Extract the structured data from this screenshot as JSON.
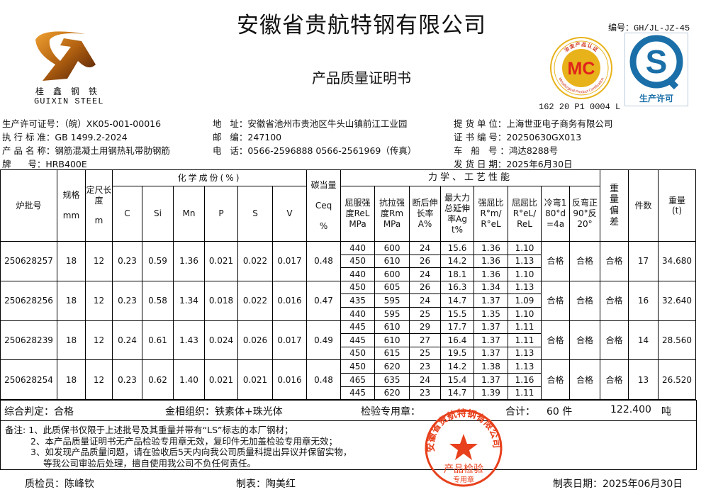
{
  "header": {
    "title": "安徽省贵航特钢有限公司",
    "subtitle": "产品质量证明书",
    "form_no": "编号：GH/JL-JZ-45",
    "logo_cn": "桂鑫钢铁",
    "logo_en": "GUIXIN STEEL",
    "mc_badge": {
      "text": "MC",
      "ring_cn": "冶金产品认证",
      "ring_en": "Metallurgical Product Certification",
      "code": "162 20 P1 0004 L"
    },
    "qs_badge": {
      "text": "生产许可"
    }
  },
  "info": {
    "left": [
      {
        "label": "生产许可证号：",
        "value": "（皖）XK05-001-00016"
      },
      {
        "label": "执 行 标 准：",
        "value": "GB 1499.2-2024"
      },
      {
        "label": "产 品 名 称：",
        "value": "钢筋混凝土用钢热轧带肋钢筋"
      },
      {
        "label": "牌      号：",
        "value": "HRB400E"
      }
    ],
    "middle": [
      {
        "label": "地   址：",
        "value": "安徽省池州市贵池区牛头山镇前江工业园"
      },
      {
        "label": "邮   编：",
        "value": "247100"
      },
      {
        "label": "电   话：",
        "value": "0566-2596888  0566-2561969（传真）"
      }
    ],
    "right": [
      {
        "label": "提 货 单 位：",
        "value": "上海世亚电子商务有限公司"
      },
      {
        "label": "证 书 编 号：",
        "value": "20250630GX013"
      },
      {
        "label": "车   船   号 ：",
        "value": "鸿达8288号"
      },
      {
        "label": "发 货 日 期：",
        "value": "2025年6月30日"
      }
    ]
  },
  "table": {
    "headers": {
      "lot": "炉批号",
      "spec": "规格",
      "spec_unit": "mm",
      "length": "定尺长度",
      "length_unit": "m",
      "chem": "化学成份(%)",
      "chem_cols": [
        "C",
        "Si",
        "Mn",
        "P",
        "S",
        "V"
      ],
      "ceq": "碳当量",
      "ceq_sym": "Ceq",
      "ceq_unit": "%",
      "mech": "力学、工艺性能",
      "mech_cols": [
        "屈服强度ReLMPa",
        "抗拉强度RmMPa",
        "断后伸长率A%",
        "最大力总延伸率Agt%",
        "强屈比R°m/R°eL",
        "屈屈比R°eL/ReL",
        "冷弯180°d=4a",
        "反弯正90°反20°"
      ],
      "weight_dev": "重量偏差",
      "pieces": "件数",
      "weight": "重量(t)"
    },
    "batches": [
      {
        "lot": "250628257",
        "spec": "18",
        "length": "12",
        "chem": [
          "0.23",
          "0.59",
          "1.36",
          "0.021",
          "0.022",
          "0.017"
        ],
        "ceq": "0.48",
        "tests": [
          [
            "440",
            "600",
            "24",
            "15.6",
            "1.36",
            "1.10"
          ],
          [
            "450",
            "610",
            "26",
            "14.2",
            "1.36",
            "1.13"
          ],
          [
            "440",
            "600",
            "24",
            "18.1",
            "1.36",
            "1.10"
          ]
        ],
        "cold_bend": "合格",
        "rebend": "合格",
        "weight_dev": "合格",
        "pieces": "17",
        "weight": "34.680"
      },
      {
        "lot": "250628256",
        "spec": "18",
        "length": "12",
        "chem": [
          "0.23",
          "0.58",
          "1.34",
          "0.018",
          "0.022",
          "0.016"
        ],
        "ceq": "0.47",
        "tests": [
          [
            "450",
            "605",
            "26",
            "16.3",
            "1.34",
            "1.13"
          ],
          [
            "435",
            "595",
            "24",
            "14.7",
            "1.37",
            "1.09"
          ],
          [
            "440",
            "595",
            "25",
            "15.5",
            "1.35",
            "1.10"
          ]
        ],
        "cold_bend": "合格",
        "rebend": "合格",
        "weight_dev": "合格",
        "pieces": "16",
        "weight": "32.640"
      },
      {
        "lot": "250628239",
        "spec": "18",
        "length": "12",
        "chem": [
          "0.24",
          "0.61",
          "1.43",
          "0.024",
          "0.026",
          "0.017"
        ],
        "ceq": "0.49",
        "tests": [
          [
            "445",
            "610",
            "29",
            "17.7",
            "1.37",
            "1.11"
          ],
          [
            "445",
            "610",
            "27",
            "16.4",
            "1.37",
            "1.11"
          ],
          [
            "450",
            "615",
            "25",
            "19.5",
            "1.37",
            "1.13"
          ]
        ],
        "cold_bend": "合格",
        "rebend": "合格",
        "weight_dev": "合格",
        "pieces": "14",
        "weight": "28.560"
      },
      {
        "lot": "250628254",
        "spec": "18",
        "length": "12",
        "chem": [
          "0.23",
          "0.62",
          "1.40",
          "0.021",
          "0.021",
          "0.016"
        ],
        "ceq": "0.48",
        "tests": [
          [
            "450",
            "620",
            "23",
            "14.2",
            "1.38",
            "1.13"
          ],
          [
            "465",
            "635",
            "24",
            "15.4",
            "1.37",
            "1.16"
          ],
          [
            "445",
            "620",
            "23",
            "14.7",
            "1.39",
            "1.11"
          ]
        ],
        "cold_bend": "合格",
        "rebend": "合格",
        "weight_dev": "合格",
        "pieces": "13",
        "weight": "26.520"
      }
    ]
  },
  "summary": {
    "verdict": "综合判定：合格",
    "structure": "金相组织：铁素体+珠光体",
    "stamp_label": "检验专用章：",
    "total_label": "合计：",
    "total_pieces": "60 件",
    "total_weight": "122.400",
    "weight_unit": "吨"
  },
  "notes": {
    "label": "备注:",
    "items": [
      "1、此质保书仅限于上述批号及其重量并带有“LS”标志的本厂钢材；",
      "2、本产品质量证明书无产品检验专用章无效，复印件无加盖检验专用章无效；",
      "3、如发现产品质量问题，请在验收后5天内向我公司质量科提出异议并保留实物，",
      "等我公司审验后处理，擅自使用我公司不负任何责任。"
    ]
  },
  "stamp": {
    "ring": "安徽省贵航特钢有限公司",
    "line1": "产品检验",
    "line2": "专用章",
    "color": "#e8401c"
  },
  "footer": {
    "inspector": "质检员：陈峰钦",
    "maker": "制表：陶美红",
    "date": "制表日期：2025年06月30日"
  },
  "colors": {
    "mc_gold": "#e8b21a",
    "mc_red": "#e0231c",
    "qs_blue": "#1a6fa8"
  }
}
